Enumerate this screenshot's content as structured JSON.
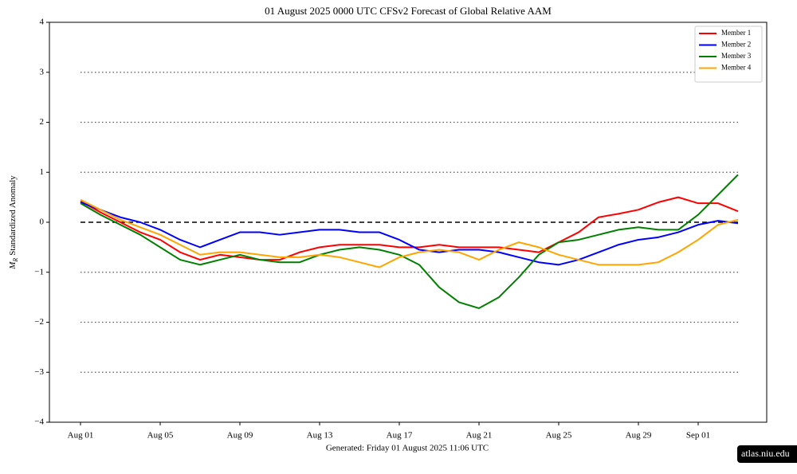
{
  "chart_data": {
    "type": "line",
    "title": "01  August  2025 0000 UTC   CFSv2 Forecast of Global Relative AAM",
    "ylabel": {
      "symbol": "M",
      "subscript": "R",
      "text": "Standardized Anomaly"
    },
    "footer": "Generated: Friday  01  August  2025  11:06 UTC",
    "watermark": "atlas.niu.edu",
    "categories": [
      "Aug 01",
      null,
      null,
      null,
      "Aug 05",
      null,
      null,
      null,
      "Aug 09",
      null,
      null,
      null,
      "Aug 13",
      null,
      null,
      null,
      "Aug 17",
      null,
      null,
      null,
      "Aug 21",
      null,
      null,
      null,
      "Aug 25",
      null,
      null,
      null,
      "Aug 29",
      null,
      null,
      "Sep 01",
      null,
      null
    ],
    "series": [
      {
        "name": "Member 1",
        "color": "#ff0000",
        "values": [
          0.42,
          0.2,
          0.0,
          -0.2,
          -0.35,
          -0.6,
          -0.75,
          -0.65,
          -0.7,
          -0.75,
          -0.75,
          -0.6,
          -0.5,
          -0.45,
          -0.45,
          -0.45,
          -0.5,
          -0.5,
          -0.45,
          -0.5,
          -0.5,
          -0.5,
          -0.55,
          -0.6,
          -0.4,
          -0.2,
          0.1,
          0.17,
          0.25,
          0.4,
          0.5,
          0.38,
          0.38,
          0.22
        ]
      },
      {
        "name": "Member 2",
        "color": "#0000ff",
        "values": [
          0.4,
          0.25,
          0.1,
          0.0,
          -0.15,
          -0.35,
          -0.5,
          -0.35,
          -0.2,
          -0.2,
          -0.25,
          -0.2,
          -0.15,
          -0.15,
          -0.2,
          -0.2,
          -0.35,
          -0.55,
          -0.6,
          -0.55,
          -0.55,
          -0.6,
          -0.7,
          -0.8,
          -0.85,
          -0.75,
          -0.6,
          -0.45,
          -0.35,
          -0.3,
          -0.2,
          -0.05,
          0.03,
          -0.02
        ]
      },
      {
        "name": "Member 3",
        "color": "#008000",
        "values": [
          0.38,
          0.15,
          -0.05,
          -0.25,
          -0.5,
          -0.75,
          -0.85,
          -0.75,
          -0.65,
          -0.75,
          -0.8,
          -0.8,
          -0.65,
          -0.55,
          -0.5,
          -0.55,
          -0.65,
          -0.85,
          -1.3,
          -1.6,
          -1.72,
          -1.5,
          -1.1,
          -0.65,
          -0.4,
          -0.35,
          -0.25,
          -0.15,
          -0.1,
          -0.15,
          -0.15,
          0.15,
          0.55,
          0.95
        ]
      },
      {
        "name": "Member 4",
        "color": "#ffa500",
        "values": [
          0.45,
          0.25,
          0.05,
          -0.1,
          -0.25,
          -0.45,
          -0.65,
          -0.6,
          -0.6,
          -0.65,
          -0.7,
          -0.7,
          -0.65,
          -0.7,
          -0.8,
          -0.9,
          -0.7,
          -0.6,
          -0.55,
          -0.6,
          -0.75,
          -0.55,
          -0.4,
          -0.5,
          -0.65,
          -0.75,
          -0.85,
          -0.85,
          -0.85,
          -0.8,
          -0.6,
          -0.35,
          -0.05,
          0.05
        ]
      }
    ],
    "ylim": [
      -4,
      4
    ],
    "yticks": [
      {
        "value": -4,
        "label": "−4"
      },
      {
        "value": -3,
        "label": "−3"
      },
      {
        "value": -2,
        "label": "−2"
      },
      {
        "value": -1,
        "label": "−1"
      },
      0,
      1,
      2,
      3,
      4
    ],
    "grid": true,
    "reference_line": 0,
    "legend": "upper right"
  }
}
